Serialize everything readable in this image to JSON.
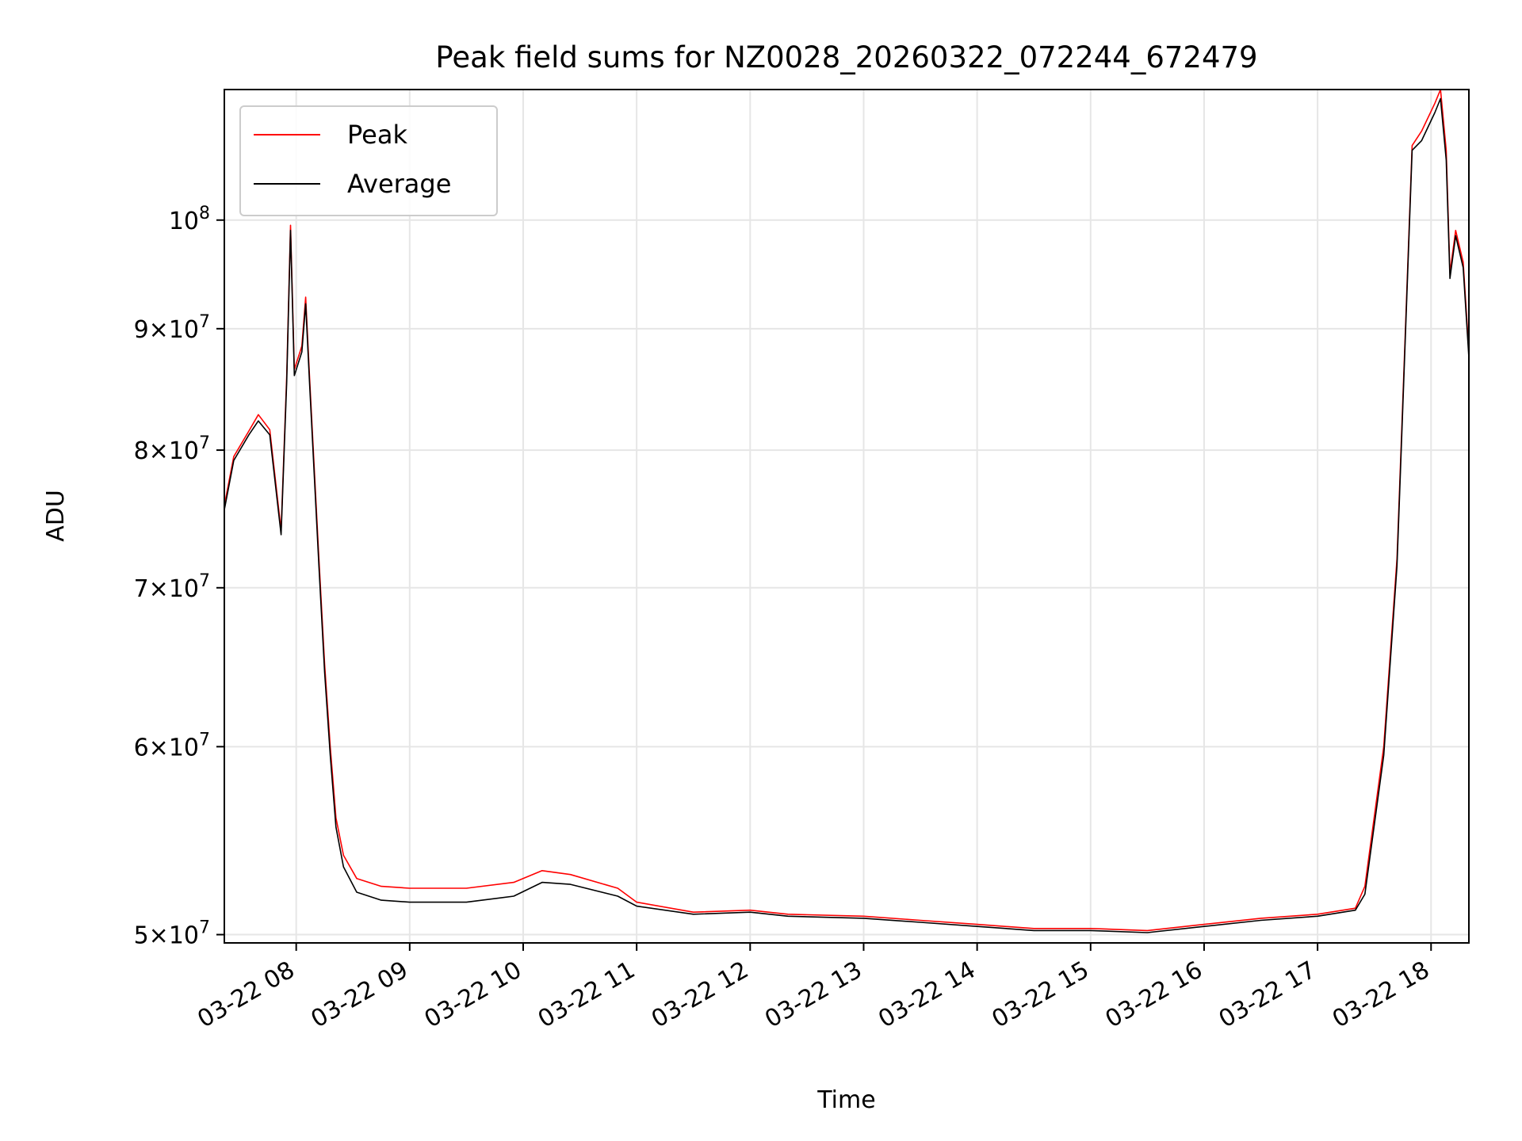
{
  "chart_data": {
    "type": "line",
    "title": "Peak field sums for NZ0028_20260322_072244_672479",
    "xlabel": "Time",
    "ylabel": "ADU",
    "x_scale": "time",
    "y_scale": "log",
    "xlim": [
      "2026-03-22 07:22",
      "2026-03-22 18:20"
    ],
    "ylim": [
      49600000,
      113500000
    ],
    "grid": true,
    "legend_position": "upper left",
    "x_ticks": [
      {
        "label": "03-22 08",
        "value": "2026-03-22 08:00"
      },
      {
        "label": "03-22 09",
        "value": "2026-03-22 09:00"
      },
      {
        "label": "03-22 10",
        "value": "2026-03-22 10:00"
      },
      {
        "label": "03-22 11",
        "value": "2026-03-22 11:00"
      },
      {
        "label": "03-22 12",
        "value": "2026-03-22 12:00"
      },
      {
        "label": "03-22 13",
        "value": "2026-03-22 13:00"
      },
      {
        "label": "03-22 14",
        "value": "2026-03-22 14:00"
      },
      {
        "label": "03-22 15",
        "value": "2026-03-22 15:00"
      },
      {
        "label": "03-22 16",
        "value": "2026-03-22 16:00"
      },
      {
        "label": "03-22 17",
        "value": "2026-03-22 17:00"
      },
      {
        "label": "03-22 18",
        "value": "2026-03-22 18:00"
      }
    ],
    "y_ticks": [
      {
        "mant": "5",
        "exp": "7",
        "value": 50000000
      },
      {
        "mant": "6",
        "exp": "7",
        "value": 60000000
      },
      {
        "mant": "7",
        "exp": "7",
        "value": 70000000
      },
      {
        "mant": "8",
        "exp": "7",
        "value": 80000000
      },
      {
        "mant": "9",
        "exp": "7",
        "value": 90000000
      },
      {
        "mant": "",
        "exp": "8",
        "value": 100000000
      }
    ],
    "series": [
      {
        "name": "Peak",
        "color": "#ff0000",
        "points": [
          [
            "2026-03-22 07:22",
            75800000
          ],
          [
            "2026-03-22 07:27",
            79500000
          ],
          [
            "2026-03-22 07:35",
            81500000
          ],
          [
            "2026-03-22 07:40",
            82800000
          ],
          [
            "2026-03-22 07:46",
            81600000
          ],
          [
            "2026-03-22 07:52",
            74000000
          ],
          [
            "2026-03-22 07:55",
            86000000
          ],
          [
            "2026-03-22 07:57",
            99500000
          ],
          [
            "2026-03-22 07:59",
            86500000
          ],
          [
            "2026-03-22 08:03",
            88500000
          ],
          [
            "2026-03-22 08:05",
            92800000
          ],
          [
            "2026-03-22 08:07",
            86000000
          ],
          [
            "2026-03-22 08:12",
            72000000
          ],
          [
            "2026-03-22 08:15",
            65000000
          ],
          [
            "2026-03-22 08:18",
            60000000
          ],
          [
            "2026-03-22 08:21",
            56000000
          ],
          [
            "2026-03-22 08:25",
            54000000
          ],
          [
            "2026-03-22 08:32",
            52800000
          ],
          [
            "2026-03-22 08:45",
            52400000
          ],
          [
            "2026-03-22 09:00",
            52300000
          ],
          [
            "2026-03-22 09:30",
            52300000
          ],
          [
            "2026-03-22 09:55",
            52600000
          ],
          [
            "2026-03-22 10:10",
            53200000
          ],
          [
            "2026-03-22 10:25",
            53000000
          ],
          [
            "2026-03-22 10:50",
            52300000
          ],
          [
            "2026-03-22 11:00",
            51600000
          ],
          [
            "2026-03-22 11:30",
            51100000
          ],
          [
            "2026-03-22 12:00",
            51200000
          ],
          [
            "2026-03-22 12:20",
            51000000
          ],
          [
            "2026-03-22 13:00",
            50900000
          ],
          [
            "2026-03-22 13:30",
            50700000
          ],
          [
            "2026-03-22 14:00",
            50500000
          ],
          [
            "2026-03-22 14:30",
            50300000
          ],
          [
            "2026-03-22 15:00",
            50300000
          ],
          [
            "2026-03-22 15:30",
            50200000
          ],
          [
            "2026-03-22 16:00",
            50500000
          ],
          [
            "2026-03-22 16:30",
            50800000
          ],
          [
            "2026-03-22 17:00",
            51000000
          ],
          [
            "2026-03-22 17:20",
            51300000
          ],
          [
            "2026-03-22 17:25",
            52400000
          ],
          [
            "2026-03-22 17:35",
            60000000
          ],
          [
            "2026-03-22 17:42",
            72000000
          ],
          [
            "2026-03-22 17:46",
            88000000
          ],
          [
            "2026-03-22 17:50",
            107500000
          ],
          [
            "2026-03-22 17:55",
            109000000
          ],
          [
            "2026-03-22 18:02",
            112000000
          ],
          [
            "2026-03-22 18:05",
            113500000
          ],
          [
            "2026-03-22 18:08",
            107000000
          ],
          [
            "2026-03-22 18:10",
            95000000
          ],
          [
            "2026-03-22 18:13",
            99000000
          ],
          [
            "2026-03-22 18:17",
            96000000
          ],
          [
            "2026-03-22 18:20",
            88000000
          ]
        ]
      },
      {
        "name": "Average",
        "color": "#000000",
        "points": [
          [
            "2026-03-22 07:22",
            75500000
          ],
          [
            "2026-03-22 07:27",
            79200000
          ],
          [
            "2026-03-22 07:35",
            81200000
          ],
          [
            "2026-03-22 07:40",
            82300000
          ],
          [
            "2026-03-22 07:46",
            81200000
          ],
          [
            "2026-03-22 07:52",
            73700000
          ],
          [
            "2026-03-22 07:55",
            85500000
          ],
          [
            "2026-03-22 07:57",
            99000000
          ],
          [
            "2026-03-22 07:59",
            86000000
          ],
          [
            "2026-03-22 08:03",
            88000000
          ],
          [
            "2026-03-22 08:05",
            92200000
          ],
          [
            "2026-03-22 08:07",
            85500000
          ],
          [
            "2026-03-22 08:12",
            71500000
          ],
          [
            "2026-03-22 08:15",
            64500000
          ],
          [
            "2026-03-22 08:18",
            59500000
          ],
          [
            "2026-03-22 08:21",
            55500000
          ],
          [
            "2026-03-22 08:25",
            53400000
          ],
          [
            "2026-03-22 08:32",
            52100000
          ],
          [
            "2026-03-22 08:45",
            51700000
          ],
          [
            "2026-03-22 09:00",
            51600000
          ],
          [
            "2026-03-22 09:30",
            51600000
          ],
          [
            "2026-03-22 09:55",
            51900000
          ],
          [
            "2026-03-22 10:10",
            52600000
          ],
          [
            "2026-03-22 10:25",
            52500000
          ],
          [
            "2026-03-22 10:50",
            51900000
          ],
          [
            "2026-03-22 11:00",
            51400000
          ],
          [
            "2026-03-22 11:30",
            51000000
          ],
          [
            "2026-03-22 12:00",
            51100000
          ],
          [
            "2026-03-22 12:20",
            50900000
          ],
          [
            "2026-03-22 13:00",
            50800000
          ],
          [
            "2026-03-22 13:30",
            50600000
          ],
          [
            "2026-03-22 14:00",
            50400000
          ],
          [
            "2026-03-22 14:30",
            50200000
          ],
          [
            "2026-03-22 15:00",
            50200000
          ],
          [
            "2026-03-22 15:30",
            50100000
          ],
          [
            "2026-03-22 16:00",
            50400000
          ],
          [
            "2026-03-22 16:30",
            50700000
          ],
          [
            "2026-03-22 17:00",
            50900000
          ],
          [
            "2026-03-22 17:20",
            51200000
          ],
          [
            "2026-03-22 17:25",
            52000000
          ],
          [
            "2026-03-22 17:35",
            59500000
          ],
          [
            "2026-03-22 17:42",
            71500000
          ],
          [
            "2026-03-22 17:46",
            87500000
          ],
          [
            "2026-03-22 17:50",
            107000000
          ],
          [
            "2026-03-22 17:55",
            108000000
          ],
          [
            "2026-03-22 18:02",
            111000000
          ],
          [
            "2026-03-22 18:05",
            112500000
          ],
          [
            "2026-03-22 18:08",
            106000000
          ],
          [
            "2026-03-22 18:10",
            94500000
          ],
          [
            "2026-03-22 18:13",
            98500000
          ],
          [
            "2026-03-22 18:17",
            95500000
          ],
          [
            "2026-03-22 18:20",
            87500000
          ]
        ]
      }
    ]
  }
}
